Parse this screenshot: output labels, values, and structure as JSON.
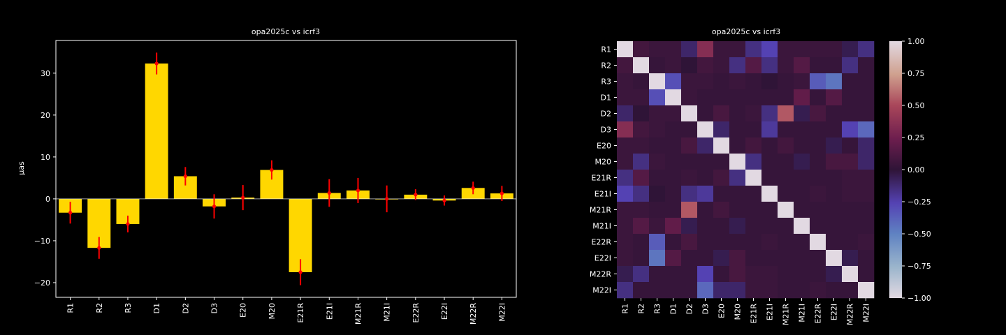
{
  "chart_data": [
    {
      "type": "bar",
      "title": "opa2025c vs icrf3",
      "xlabel": "",
      "ylabel": "μas",
      "ylim": [
        -23.5,
        37.8
      ],
      "yticks": [
        -20,
        -10,
        0,
        10,
        20,
        30
      ],
      "categories": [
        "R1",
        "R2",
        "R3",
        "D1",
        "D2",
        "D3",
        "E20",
        "M20",
        "E21R",
        "E21I",
        "M21R",
        "M21I",
        "E22R",
        "E22I",
        "M22R",
        "M22I"
      ],
      "values": [
        -3.3,
        -11.7,
        -6.0,
        32.3,
        5.4,
        -1.8,
        0.3,
        6.9,
        -17.5,
        1.4,
        2.0,
        0.0,
        1.0,
        -0.4,
        2.6,
        1.3
      ],
      "errors": [
        2.6,
        2.6,
        2.0,
        2.6,
        2.2,
        2.9,
        3.0,
        2.3,
        3.1,
        3.3,
        3.0,
        3.2,
        1.3,
        1.2,
        1.5,
        1.8
      ],
      "bar_color": "#ffd700",
      "error_color": "#ff0000",
      "grid": false
    },
    {
      "type": "heatmap",
      "title": "opa2025c vs icrf3",
      "labels": [
        "R1",
        "R2",
        "R3",
        "D1",
        "D2",
        "D3",
        "E20",
        "M20",
        "E21R",
        "E21I",
        "M21R",
        "M21I",
        "E22R",
        "E22I",
        "M22R",
        "M22I"
      ],
      "matrix": [
        [
          1.0,
          0.08,
          0.05,
          0.05,
          -0.1,
          0.35,
          0.05,
          0.05,
          -0.15,
          -0.25,
          0.05,
          0.05,
          0.05,
          0.05,
          -0.05,
          -0.15
        ],
        [
          0.08,
          1.0,
          0.03,
          0.05,
          0.0,
          0.08,
          0.05,
          -0.15,
          0.15,
          -0.15,
          0.05,
          0.15,
          0.03,
          0.03,
          -0.15,
          0.03
        ],
        [
          0.05,
          0.03,
          1.0,
          -0.3,
          0.05,
          0.05,
          0.03,
          0.05,
          0.03,
          0.0,
          0.03,
          0.05,
          -0.35,
          -0.45,
          0.03,
          0.03
        ],
        [
          0.05,
          0.05,
          -0.3,
          1.0,
          0.05,
          0.03,
          0.03,
          0.03,
          0.03,
          0.03,
          0.03,
          0.2,
          0.03,
          0.15,
          0.03,
          0.03
        ],
        [
          -0.1,
          0.0,
          0.05,
          0.05,
          1.0,
          0.03,
          0.1,
          0.03,
          0.05,
          -0.15,
          0.55,
          -0.05,
          0.1,
          0.03,
          0.03,
          0.03
        ],
        [
          0.35,
          0.08,
          0.05,
          0.03,
          0.03,
          1.0,
          -0.1,
          0.03,
          0.03,
          -0.2,
          0.03,
          0.03,
          0.03,
          0.03,
          -0.25,
          -0.4
        ],
        [
          0.05,
          0.05,
          0.03,
          0.03,
          0.1,
          -0.1,
          1.0,
          0.03,
          0.08,
          0.03,
          0.08,
          0.03,
          0.03,
          -0.05,
          0.03,
          -0.1
        ],
        [
          0.05,
          -0.15,
          0.05,
          0.03,
          0.03,
          0.03,
          0.03,
          1.0,
          -0.15,
          0.03,
          0.03,
          -0.05,
          0.03,
          0.1,
          0.1,
          -0.1
        ],
        [
          -0.15,
          0.15,
          0.03,
          0.03,
          0.05,
          0.03,
          0.08,
          -0.15,
          1.0,
          0.03,
          0.03,
          0.03,
          0.03,
          0.03,
          0.05,
          0.05
        ],
        [
          -0.25,
          -0.15,
          0.0,
          0.03,
          -0.15,
          -0.2,
          0.03,
          0.03,
          0.03,
          1.0,
          0.03,
          0.03,
          0.05,
          0.03,
          0.05,
          0.05
        ],
        [
          0.05,
          0.05,
          0.03,
          0.03,
          0.55,
          0.03,
          0.08,
          0.03,
          0.03,
          0.03,
          1.0,
          0.03,
          0.03,
          0.03,
          0.03,
          0.03
        ],
        [
          0.05,
          0.15,
          0.05,
          0.2,
          -0.05,
          0.03,
          0.03,
          -0.05,
          0.03,
          0.03,
          0.03,
          1.0,
          0.03,
          0.03,
          0.03,
          0.03
        ],
        [
          0.05,
          0.03,
          -0.35,
          0.03,
          0.1,
          0.03,
          0.03,
          0.03,
          0.03,
          0.05,
          0.03,
          0.03,
          1.0,
          0.03,
          0.03,
          0.05
        ],
        [
          0.05,
          0.03,
          -0.45,
          0.15,
          0.03,
          0.03,
          -0.05,
          0.1,
          0.03,
          0.03,
          0.03,
          0.03,
          0.03,
          1.0,
          -0.05,
          0.03
        ],
        [
          -0.05,
          -0.15,
          0.03,
          0.03,
          0.03,
          -0.25,
          0.03,
          0.1,
          0.05,
          0.05,
          0.03,
          0.03,
          0.03,
          -0.05,
          1.0,
          0.03
        ],
        [
          -0.15,
          0.03,
          0.03,
          0.03,
          0.03,
          -0.4,
          -0.1,
          -0.1,
          0.05,
          0.05,
          0.03,
          0.03,
          0.05,
          0.03,
          0.03,
          1.0
        ]
      ],
      "vmin": -1.0,
      "vmax": 1.0,
      "colorbar_ticks": [
        "1.00",
        "0.75",
        "0.50",
        "0.25",
        "0.00",
        "−0.25",
        "−0.50",
        "−0.75",
        "−1.00"
      ],
      "colormap": "twilight"
    }
  ]
}
